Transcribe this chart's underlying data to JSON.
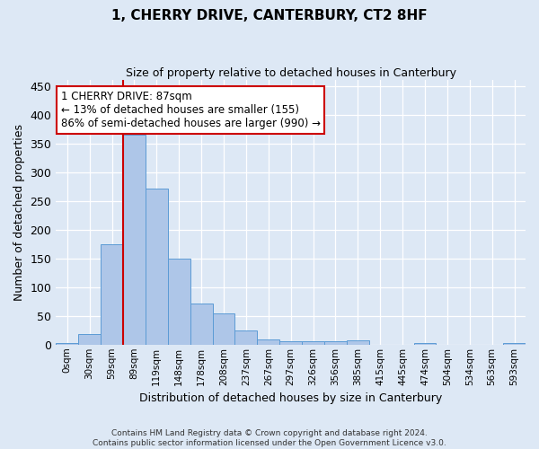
{
  "title": "1, CHERRY DRIVE, CANTERBURY, CT2 8HF",
  "subtitle": "Size of property relative to detached houses in Canterbury",
  "xlabel": "Distribution of detached houses by size in Canterbury",
  "ylabel": "Number of detached properties",
  "footer_line1": "Contains HM Land Registry data © Crown copyright and database right 2024.",
  "footer_line2": "Contains public sector information licensed under the Open Government Licence v3.0.",
  "bar_labels": [
    "0sqm",
    "30sqm",
    "59sqm",
    "89sqm",
    "119sqm",
    "148sqm",
    "178sqm",
    "208sqm",
    "237sqm",
    "267sqm",
    "297sqm",
    "326sqm",
    "356sqm",
    "385sqm",
    "415sqm",
    "445sqm",
    "474sqm",
    "504sqm",
    "534sqm",
    "563sqm",
    "593sqm"
  ],
  "bar_values": [
    2,
    18,
    175,
    365,
    272,
    150,
    72,
    54,
    25,
    9,
    6,
    6,
    6,
    8,
    0,
    0,
    3,
    0,
    0,
    0,
    2
  ],
  "bar_color": "#aec6e8",
  "bar_edge_color": "#5b9bd5",
  "background_color": "#dde8f5",
  "grid_color": "#ffffff",
  "vline_color": "#cc0000",
  "annotation_text": "1 CHERRY DRIVE: 87sqm\n← 13% of detached houses are smaller (155)\n86% of semi-detached houses are larger (990) →",
  "annotation_box_color": "#ffffff",
  "annotation_box_edge": "#cc0000",
  "ylim": [
    0,
    460
  ],
  "yticks": [
    0,
    50,
    100,
    150,
    200,
    250,
    300,
    350,
    400,
    450
  ]
}
